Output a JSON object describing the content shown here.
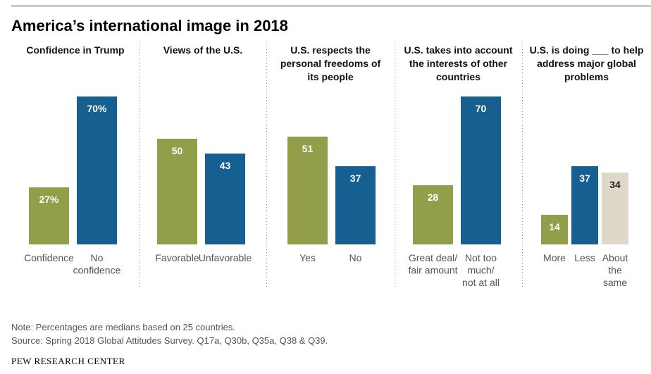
{
  "title": "America’s international image in 2018",
  "chart_data": [
    {
      "type": "bar",
      "title": "Confidence in Trump",
      "title_lines": [
        "Confidence in Trump"
      ],
      "categories": [
        "Confidence",
        "No confidence"
      ],
      "category_lines": [
        [
          "Confidence"
        ],
        [
          "No",
          "confidence"
        ]
      ],
      "values": [
        27,
        70
      ],
      "value_labels": [
        "27%",
        "70%"
      ],
      "colors": [
        "#939E4B",
        "#156091"
      ],
      "label_colors": [
        "#ffffff",
        "#ffffff"
      ],
      "ylim": [
        0,
        100
      ]
    },
    {
      "type": "bar",
      "title": "Views of the U.S.",
      "title_lines": [
        "Views of the U.S."
      ],
      "categories": [
        "Favorable",
        "Unfavorable"
      ],
      "category_lines": [
        [
          "Favorable"
        ],
        [
          "Unfavorable"
        ]
      ],
      "values": [
        50,
        43
      ],
      "value_labels": [
        "50",
        "43"
      ],
      "colors": [
        "#939E4B",
        "#156091"
      ],
      "label_colors": [
        "#ffffff",
        "#ffffff"
      ],
      "ylim": [
        0,
        100
      ]
    },
    {
      "type": "bar",
      "title": "U.S. respects the personal freedoms of its people",
      "title_lines": [
        "U.S. respects the",
        "personal freedoms of",
        "its people"
      ],
      "categories": [
        "Yes",
        "No"
      ],
      "category_lines": [
        [
          "Yes"
        ],
        [
          "No"
        ]
      ],
      "values": [
        51,
        37
      ],
      "value_labels": [
        "51",
        "37"
      ],
      "colors": [
        "#939E4B",
        "#156091"
      ],
      "label_colors": [
        "#ffffff",
        "#ffffff"
      ],
      "ylim": [
        0,
        100
      ]
    },
    {
      "type": "bar",
      "title": "U.S. takes into account the interests of other countries",
      "title_lines": [
        "U.S. takes into account",
        "the interests of other",
        "countries"
      ],
      "categories": [
        "Great deal/ fair amount",
        "Not too much/ not at all"
      ],
      "category_lines": [
        [
          "Great deal/",
          "fair amount"
        ],
        [
          "Not too",
          "much/",
          "not at all"
        ]
      ],
      "values": [
        28,
        70
      ],
      "value_labels": [
        "28",
        "70"
      ],
      "colors": [
        "#939E4B",
        "#156091"
      ],
      "label_colors": [
        "#ffffff",
        "#ffffff"
      ],
      "ylim": [
        0,
        100
      ]
    },
    {
      "type": "bar",
      "title": "U.S. is doing ___ to help address major global problems",
      "title_lines": [
        "U.S. is doing ___ to help",
        "address major global",
        "problems"
      ],
      "categories": [
        "More",
        "Less",
        "About the same"
      ],
      "category_lines": [
        [
          "More"
        ],
        [
          "Less"
        ],
        [
          "About",
          "the",
          "same"
        ]
      ],
      "values": [
        14,
        37,
        34
      ],
      "value_labels": [
        "14",
        "37",
        "34"
      ],
      "colors": [
        "#939E4B",
        "#156091",
        "#DDD8C8"
      ],
      "label_colors": [
        "#ffffff",
        "#ffffff",
        "#222222"
      ],
      "ylim": [
        0,
        100
      ]
    }
  ],
  "note": "Note: Percentages are medians based on 25 countries.",
  "source": "Source: Spring 2018 Global Attitudes Survey. Q17a, Q30b, Q35a, Q38 & Q39.",
  "credit": "PEW RESEARCH CENTER"
}
